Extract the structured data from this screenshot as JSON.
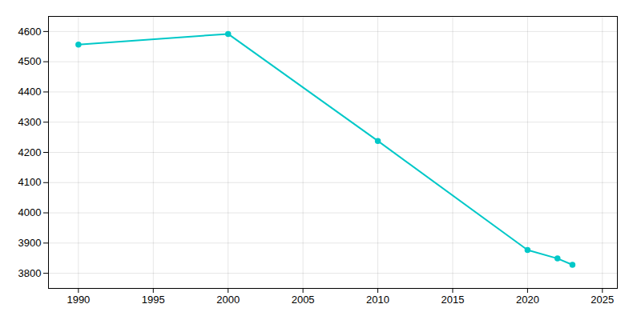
{
  "chart_data": {
    "type": "line",
    "x": [
      1990,
      2000,
      2010,
      2020,
      2022,
      2023
    ],
    "values": [
      4557,
      4592,
      4238,
      3877,
      3849,
      3828
    ],
    "color": "#00C8C8",
    "marker": "circle",
    "xlim": [
      1988,
      2026
    ],
    "xticks": [
      1990,
      1995,
      2000,
      2005,
      2010,
      2015,
      2020,
      2025
    ],
    "ylim": [
      3750,
      4650
    ],
    "yticks": [
      3800,
      3900,
      4000,
      4100,
      4200,
      4300,
      4400,
      4500,
      4600
    ],
    "grid": true
  }
}
